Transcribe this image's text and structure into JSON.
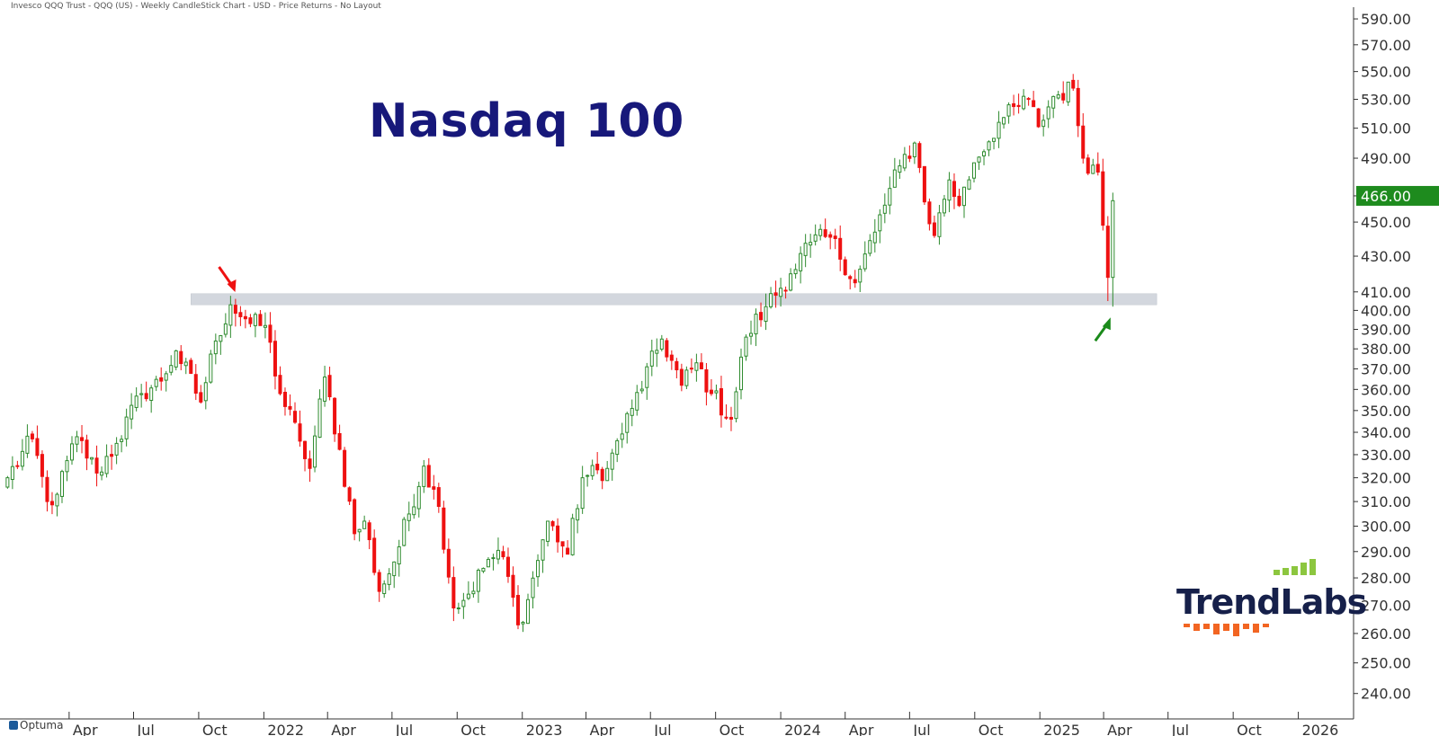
{
  "header": {
    "description": "Invesco QQQ Trust - QQQ (US) - Weekly CandleStick Chart - USD - Price Returns - No Layout"
  },
  "title": "Nasdaq 100",
  "brand": {
    "platform": "Optuma",
    "logo": "TrendLabs"
  },
  "colors": {
    "up": "#2e8b2e",
    "down": "#ee1111",
    "band": "#d3d7de",
    "title": "#17187a",
    "price_tag": "#1e8b1e",
    "arrow_red": "#ee1111",
    "arrow_green": "#1a8a1a",
    "logo_green": "#8cc63f",
    "logo_orange": "#f26522"
  },
  "chart_data": {
    "type": "candlestick",
    "interval": "weekly",
    "ylabel": "",
    "xlabel": "",
    "y_scale": "log",
    "ylim": [
      232,
      595
    ],
    "y_ticks": [
      "590.00",
      "570.00",
      "550.00",
      "530.00",
      "510.00",
      "490.00",
      "466.00",
      "450.00",
      "430.00",
      "410.00",
      "400.00",
      "390.00",
      "380.00",
      "370.00",
      "360.00",
      "350.00",
      "340.00",
      "330.00",
      "320.00",
      "310.00",
      "300.00",
      "290.00",
      "280.00",
      "270.00",
      "260.00",
      "250.00",
      "240.00"
    ],
    "y_tick_values": [
      590,
      570,
      550,
      530,
      510,
      490,
      466,
      450,
      430,
      410,
      400,
      390,
      380,
      370,
      360,
      350,
      340,
      330,
      320,
      310,
      300,
      290,
      280,
      270,
      260,
      250,
      240
    ],
    "x_ticks": [
      {
        "label": "Apr",
        "date": "2021-04-01"
      },
      {
        "label": "Jul",
        "date": "2021-07-01"
      },
      {
        "label": "Oct",
        "date": "2021-10-01"
      },
      {
        "label": "2022",
        "date": "2022-01-01"
      },
      {
        "label": "Apr",
        "date": "2022-04-01"
      },
      {
        "label": "Jul",
        "date": "2022-07-01"
      },
      {
        "label": "Oct",
        "date": "2022-10-01"
      },
      {
        "label": "2023",
        "date": "2023-01-01"
      },
      {
        "label": "Apr",
        "date": "2023-04-01"
      },
      {
        "label": "Jul",
        "date": "2023-07-01"
      },
      {
        "label": "Oct",
        "date": "2023-10-01"
      },
      {
        "label": "2024",
        "date": "2024-01-01"
      },
      {
        "label": "Apr",
        "date": "2024-04-01"
      },
      {
        "label": "Jul",
        "date": "2024-07-01"
      },
      {
        "label": "Oct",
        "date": "2024-10-01"
      },
      {
        "label": "2025",
        "date": "2025-01-01"
      },
      {
        "label": "Apr",
        "date": "2025-04-01"
      },
      {
        "label": "Jul",
        "date": "2025-07-01"
      },
      {
        "label": "Oct",
        "date": "2025-10-01"
      },
      {
        "label": "2026",
        "date": "2026-01-01"
      }
    ],
    "first_bar_date": "2021-01-04",
    "x_range": [
      "2021-01-01",
      "2026-03-20"
    ],
    "last_price": "466.00",
    "last_price_value": 466,
    "support_band": {
      "low": 403,
      "high": 409,
      "from": "2021-09-20",
      "to": "2025-06-15"
    },
    "annotations": [
      {
        "type": "arrow",
        "color": "red",
        "date": "2021-11-19",
        "value": 406,
        "direction": "down-right"
      },
      {
        "type": "arrow",
        "color": "green",
        "date": "2025-04-07",
        "value": 402,
        "direction": "up-right"
      }
    ],
    "grid": false,
    "legend": "none",
    "close_path": [
      [
        "2021-01-04",
        320
      ],
      [
        "2021-02-08",
        337
      ],
      [
        "2021-03-01",
        310
      ],
      [
        "2021-03-15",
        313
      ],
      [
        "2021-04-12",
        338
      ],
      [
        "2021-05-10",
        322
      ],
      [
        "2021-06-07",
        335
      ],
      [
        "2021-07-12",
        358
      ],
      [
        "2021-08-09",
        364
      ],
      [
        "2021-08-30",
        379
      ],
      [
        "2021-10-04",
        354
      ],
      [
        "2021-10-25",
        384
      ],
      [
        "2021-11-15",
        403
      ],
      [
        "2021-12-13",
        393
      ],
      [
        "2022-01-03",
        392
      ],
      [
        "2022-01-24",
        358
      ],
      [
        "2022-02-21",
        336
      ],
      [
        "2022-03-07",
        324
      ],
      [
        "2022-03-28",
        366
      ],
      [
        "2022-05-09",
        297
      ],
      [
        "2022-05-23",
        302
      ],
      [
        "2022-06-13",
        275
      ],
      [
        "2022-07-04",
        286
      ],
      [
        "2022-08-15",
        325
      ],
      [
        "2022-09-05",
        308
      ],
      [
        "2022-09-26",
        269
      ],
      [
        "2022-10-17",
        274
      ],
      [
        "2022-11-14",
        287
      ],
      [
        "2022-12-05",
        288
      ],
      [
        "2022-12-26",
        263
      ],
      [
        "2023-01-09",
        272
      ],
      [
        "2023-02-06",
        302
      ],
      [
        "2023-03-06",
        289
      ],
      [
        "2023-03-27",
        320
      ],
      [
        "2023-05-01",
        324
      ],
      [
        "2023-06-05",
        351
      ],
      [
        "2023-07-17",
        385
      ],
      [
        "2023-08-14",
        362
      ],
      [
        "2023-09-04",
        373
      ],
      [
        "2023-09-25",
        358
      ],
      [
        "2023-10-23",
        346
      ],
      [
        "2023-11-13",
        386
      ],
      [
        "2023-12-11",
        402
      ],
      [
        "2024-01-15",
        420
      ],
      [
        "2024-02-12",
        438
      ],
      [
        "2024-03-11",
        441
      ],
      [
        "2024-04-15",
        415
      ],
      [
        "2024-05-13",
        444
      ],
      [
        "2024-06-17",
        485
      ],
      [
        "2024-07-08",
        500
      ],
      [
        "2024-07-29",
        449
      ],
      [
        "2024-08-05",
        442
      ],
      [
        "2024-08-26",
        476
      ],
      [
        "2024-09-09",
        460
      ],
      [
        "2024-09-30",
        487
      ],
      [
        "2024-11-04",
        514
      ],
      [
        "2024-12-16",
        530
      ],
      [
        "2024-12-30",
        511
      ],
      [
        "2025-01-20",
        532
      ],
      [
        "2025-02-17",
        538
      ],
      [
        "2025-03-03",
        490
      ],
      [
        "2025-03-24",
        481
      ],
      [
        "2025-04-07",
        418
      ],
      [
        "2025-04-14",
        463
      ]
    ]
  }
}
